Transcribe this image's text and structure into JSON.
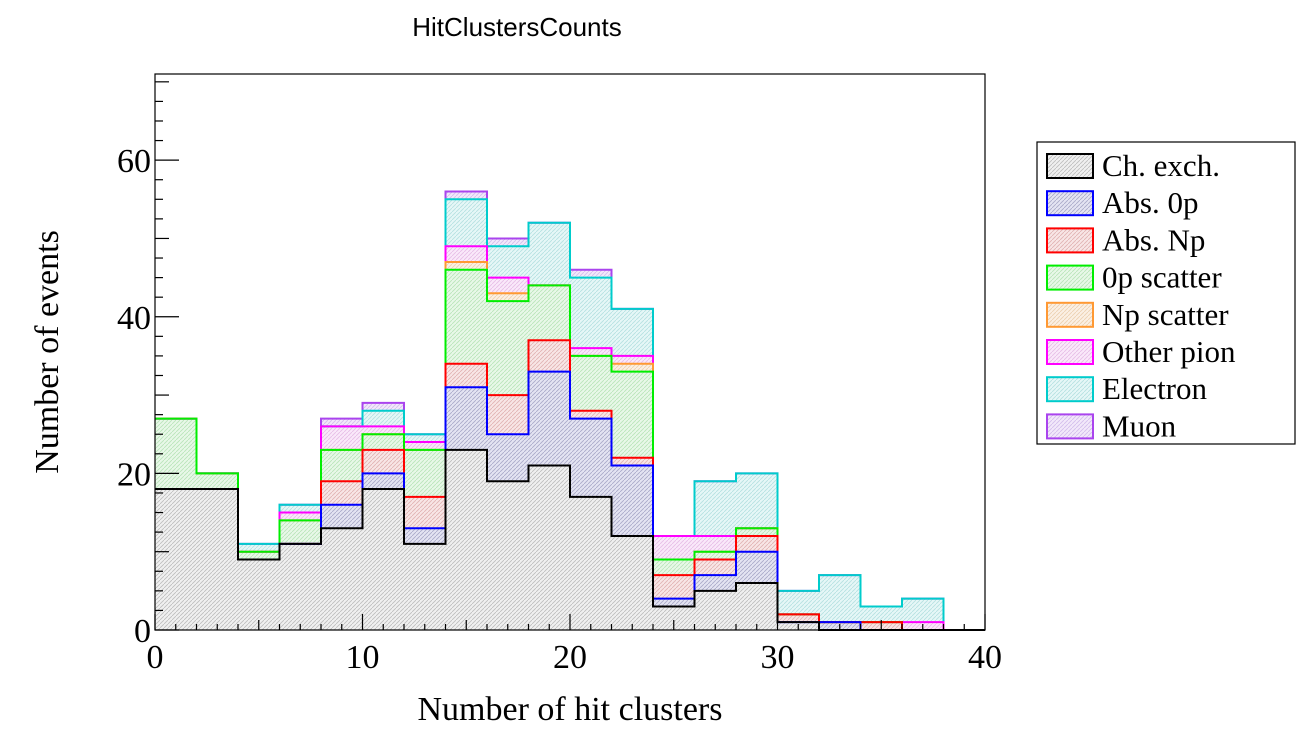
{
  "chart_data": {
    "type": "area",
    "title": "HitClustersCounts",
    "xlabel": "Number of hit clusters",
    "ylabel": "Number of events",
    "xlim": [
      0,
      40
    ],
    "ylim": [
      0,
      71
    ],
    "bin_width": 2,
    "x": [
      0,
      2,
      4,
      6,
      8,
      10,
      12,
      14,
      16,
      18,
      20,
      22,
      24,
      26,
      28,
      30,
      32,
      34,
      36,
      38
    ],
    "xticks": [
      0,
      10,
      20,
      30,
      40
    ],
    "yticks": [
      0,
      20,
      40,
      60
    ],
    "grid": false,
    "legend_position": "right",
    "stacked": true,
    "series": [
      {
        "name": "Ch. exch.",
        "color": "#000000",
        "values": [
          18,
          18,
          9,
          11,
          13,
          18,
          11,
          23,
          19,
          21,
          17,
          12,
          3,
          5,
          6,
          1,
          0,
          0,
          0,
          0
        ]
      },
      {
        "name": "Abs. 0p",
        "color": "#0000ff",
        "values": [
          18,
          18,
          9,
          11,
          16,
          20,
          13,
          31,
          25,
          33,
          27,
          21,
          4,
          7,
          10,
          1,
          1,
          0,
          0,
          0
        ]
      },
      {
        "name": "Abs. Np",
        "color": "#ff0000",
        "values": [
          18,
          18,
          9,
          11,
          19,
          23,
          17,
          34,
          30,
          37,
          28,
          22,
          7,
          9,
          12,
          2,
          1,
          1,
          0,
          0
        ]
      },
      {
        "name": "0p scatter",
        "color": "#00ee00",
        "values": [
          27,
          20,
          10,
          14,
          23,
          25,
          23,
          46,
          42,
          44,
          35,
          33,
          9,
          10,
          13,
          2,
          1,
          1,
          0,
          0
        ]
      },
      {
        "name": "Np scatter",
        "color": "#ff9933",
        "values": [
          27,
          20,
          10,
          14,
          23,
          25,
          23,
          47,
          43,
          44,
          35,
          34,
          9,
          10,
          13,
          2,
          1,
          1,
          0,
          0
        ]
      },
      {
        "name": "Other pion",
        "color": "#ff00ff",
        "values": [
          27,
          20,
          10,
          15,
          26,
          26,
          24,
          49,
          45,
          44,
          36,
          35,
          12,
          12,
          13,
          2,
          1,
          1,
          1,
          0
        ]
      },
      {
        "name": "Electron",
        "color": "#00cccc",
        "values": [
          27,
          20,
          11,
          16,
          26,
          28,
          25,
          55,
          49,
          52,
          45,
          41,
          12,
          19,
          20,
          5,
          7,
          3,
          4,
          0
        ]
      },
      {
        "name": "Muon",
        "color": "#aa44ee",
        "values": [
          27,
          20,
          11,
          16,
          27,
          29,
          25,
          56,
          50,
          52,
          46,
          41,
          12,
          19,
          20,
          5,
          7,
          3,
          4,
          0
        ]
      }
    ]
  }
}
